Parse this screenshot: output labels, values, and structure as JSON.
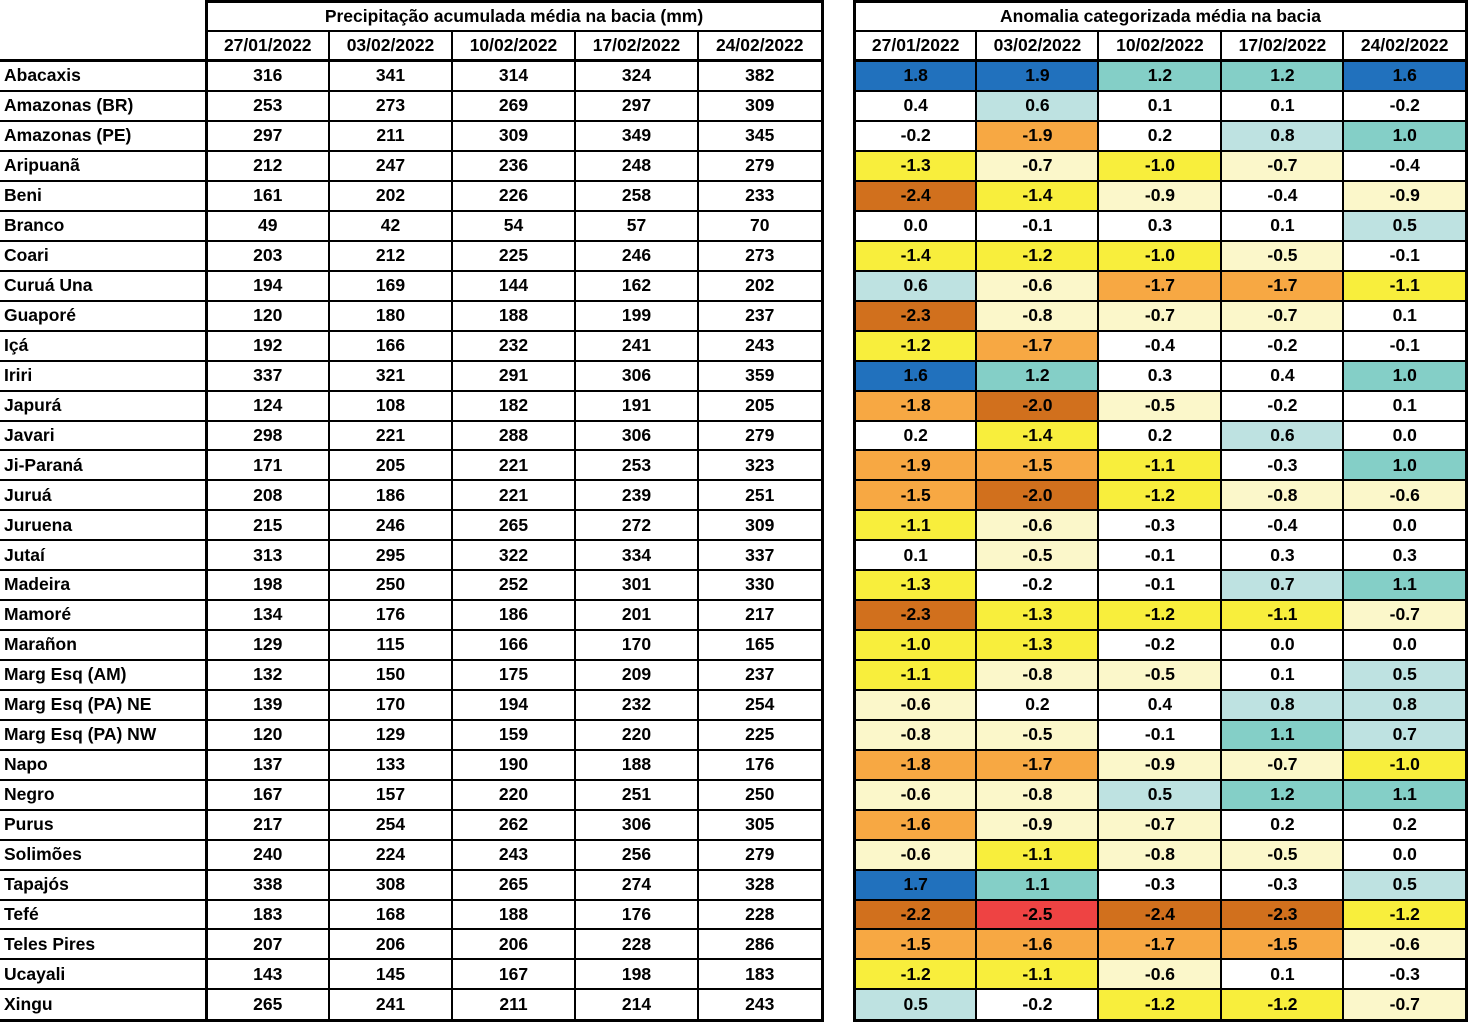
{
  "chart_data": [
    {
      "type": "table",
      "title": "Precipitação acumulada média na bacia (mm)",
      "columns": [
        "27/01/2022",
        "03/02/2022",
        "10/02/2022",
        "17/02/2022",
        "24/02/2022"
      ],
      "row_header": "",
      "rows": [
        {
          "label": "Abacaxis",
          "values": [
            316,
            341,
            314,
            324,
            382
          ]
        },
        {
          "label": "Amazonas (BR)",
          "values": [
            253,
            273,
            269,
            297,
            309
          ]
        },
        {
          "label": "Amazonas (PE)",
          "values": [
            297,
            211,
            309,
            349,
            345
          ]
        },
        {
          "label": "Aripuanã",
          "values": [
            212,
            247,
            236,
            248,
            279
          ]
        },
        {
          "label": "Beni",
          "values": [
            161,
            202,
            226,
            258,
            233
          ]
        },
        {
          "label": "Branco",
          "values": [
            49,
            42,
            54,
            57,
            70
          ]
        },
        {
          "label": "Coari",
          "values": [
            203,
            212,
            225,
            246,
            273
          ]
        },
        {
          "label": "Curuá Una",
          "values": [
            194,
            169,
            144,
            162,
            202
          ]
        },
        {
          "label": "Guaporé",
          "values": [
            120,
            180,
            188,
            199,
            237
          ]
        },
        {
          "label": "Içá",
          "values": [
            192,
            166,
            232,
            241,
            243
          ]
        },
        {
          "label": "Iriri",
          "values": [
            337,
            321,
            291,
            306,
            359
          ]
        },
        {
          "label": "Japurá",
          "values": [
            124,
            108,
            182,
            191,
            205
          ]
        },
        {
          "label": "Javari",
          "values": [
            298,
            221,
            288,
            306,
            279
          ]
        },
        {
          "label": "Ji-Paraná",
          "values": [
            171,
            205,
            221,
            253,
            323
          ]
        },
        {
          "label": "Juruá",
          "values": [
            208,
            186,
            221,
            239,
            251
          ]
        },
        {
          "label": "Juruena",
          "values": [
            215,
            246,
            265,
            272,
            309
          ]
        },
        {
          "label": "Jutaí",
          "values": [
            313,
            295,
            322,
            334,
            337
          ]
        },
        {
          "label": "Madeira",
          "values": [
            198,
            250,
            252,
            301,
            330
          ]
        },
        {
          "label": "Mamoré",
          "values": [
            134,
            176,
            186,
            201,
            217
          ]
        },
        {
          "label": "Marañon",
          "values": [
            129,
            115,
            166,
            170,
            165
          ]
        },
        {
          "label": "Marg Esq (AM)",
          "values": [
            132,
            150,
            175,
            209,
            237
          ]
        },
        {
          "label": "Marg Esq (PA) NE",
          "values": [
            139,
            170,
            194,
            232,
            254
          ]
        },
        {
          "label": "Marg Esq (PA) NW",
          "values": [
            120,
            129,
            159,
            220,
            225
          ]
        },
        {
          "label": "Napo",
          "values": [
            137,
            133,
            190,
            188,
            176
          ]
        },
        {
          "label": "Negro",
          "values": [
            167,
            157,
            220,
            251,
            250
          ]
        },
        {
          "label": "Purus",
          "values": [
            217,
            254,
            262,
            306,
            305
          ]
        },
        {
          "label": "Solimões",
          "values": [
            240,
            224,
            243,
            256,
            279
          ]
        },
        {
          "label": "Tapajós",
          "values": [
            338,
            308,
            265,
            274,
            328
          ]
        },
        {
          "label": "Tefé",
          "values": [
            183,
            168,
            188,
            176,
            228
          ]
        },
        {
          "label": "Teles Pires",
          "values": [
            207,
            206,
            206,
            228,
            286
          ]
        },
        {
          "label": "Ucayali",
          "values": [
            143,
            145,
            167,
            198,
            183
          ]
        },
        {
          "label": "Xingu",
          "values": [
            265,
            241,
            211,
            214,
            243
          ]
        }
      ]
    },
    {
      "type": "heatmap",
      "title": "Anomalia categorizada média na bacia",
      "columns": [
        "27/01/2022",
        "03/02/2022",
        "10/02/2022",
        "17/02/2022",
        "24/02/2022"
      ],
      "rows": [
        {
          "label": "Abacaxis",
          "values": [
            1.8,
            1.9,
            1.2,
            1.2,
            1.6
          ]
        },
        {
          "label": "Amazonas (BR)",
          "values": [
            0.4,
            0.6,
            0.1,
            0.1,
            -0.2
          ]
        },
        {
          "label": "Amazonas (PE)",
          "values": [
            -0.2,
            -1.9,
            0.2,
            0.8,
            1.0
          ]
        },
        {
          "label": "Aripuanã",
          "values": [
            -1.3,
            -0.7,
            -1.0,
            -0.7,
            -0.4
          ]
        },
        {
          "label": "Beni",
          "values": [
            -2.4,
            -1.4,
            -0.9,
            -0.4,
            -0.9
          ]
        },
        {
          "label": "Branco",
          "values": [
            0.0,
            -0.1,
            0.3,
            0.1,
            0.5
          ]
        },
        {
          "label": "Coari",
          "values": [
            -1.4,
            -1.2,
            -1.0,
            -0.5,
            -0.1
          ]
        },
        {
          "label": "Curuá Una",
          "values": [
            0.6,
            -0.6,
            -1.7,
            -1.7,
            -1.1
          ]
        },
        {
          "label": "Guaporé",
          "values": [
            -2.3,
            -0.8,
            -0.7,
            -0.7,
            0.1
          ]
        },
        {
          "label": "Içá",
          "values": [
            -1.2,
            -1.7,
            -0.4,
            -0.2,
            -0.1
          ]
        },
        {
          "label": "Iriri",
          "values": [
            1.6,
            1.2,
            0.3,
            0.4,
            1.0
          ]
        },
        {
          "label": "Japurá",
          "values": [
            -1.8,
            -2.0,
            -0.5,
            -0.2,
            0.1
          ]
        },
        {
          "label": "Javari",
          "values": [
            0.2,
            -1.4,
            0.2,
            0.6,
            0.0
          ]
        },
        {
          "label": "Ji-Paraná",
          "values": [
            -1.9,
            -1.5,
            -1.1,
            -0.3,
            1.0
          ]
        },
        {
          "label": "Juruá",
          "values": [
            -1.5,
            -2.0,
            -1.2,
            -0.8,
            -0.6
          ]
        },
        {
          "label": "Juruena",
          "values": [
            -1.1,
            -0.6,
            -0.3,
            -0.4,
            0.0
          ]
        },
        {
          "label": "Jutaí",
          "values": [
            0.1,
            -0.5,
            -0.1,
            0.3,
            0.3
          ]
        },
        {
          "label": "Madeira",
          "values": [
            -1.3,
            -0.2,
            -0.1,
            0.7,
            1.1
          ]
        },
        {
          "label": "Mamoré",
          "values": [
            -2.3,
            -1.3,
            -1.2,
            -1.1,
            -0.7
          ]
        },
        {
          "label": "Marañon",
          "values": [
            -1.0,
            -1.3,
            -0.2,
            0.0,
            0.0
          ]
        },
        {
          "label": "Marg Esq (AM)",
          "values": [
            -1.1,
            -0.8,
            -0.5,
            0.1,
            0.5
          ]
        },
        {
          "label": "Marg Esq (PA) NE",
          "values": [
            -0.6,
            0.2,
            0.4,
            0.8,
            0.8
          ]
        },
        {
          "label": "Marg Esq (PA) NW",
          "values": [
            -0.8,
            -0.5,
            -0.1,
            1.1,
            0.7
          ]
        },
        {
          "label": "Napo",
          "values": [
            -1.8,
            -1.7,
            -0.9,
            -0.7,
            -1.0
          ]
        },
        {
          "label": "Negro",
          "values": [
            -0.6,
            -0.8,
            0.5,
            1.2,
            1.1
          ]
        },
        {
          "label": "Purus",
          "values": [
            -1.6,
            -0.9,
            -0.7,
            0.2,
            0.2
          ]
        },
        {
          "label": "Solimões",
          "values": [
            -0.6,
            -1.1,
            -0.8,
            -0.5,
            0.0
          ]
        },
        {
          "label": "Tapajós",
          "values": [
            1.7,
            1.1,
            -0.3,
            -0.3,
            0.5
          ]
        },
        {
          "label": "Tefé",
          "values": [
            -2.2,
            -2.5,
            -2.4,
            -2.3,
            -1.2
          ]
        },
        {
          "label": "Teles Pires",
          "values": [
            -1.5,
            -1.6,
            -1.7,
            -1.5,
            -0.6
          ]
        },
        {
          "label": "Ucayali",
          "values": [
            -1.2,
            -1.1,
            -0.6,
            0.1,
            -0.3
          ]
        },
        {
          "label": "Xingu",
          "values": [
            0.5,
            -0.2,
            -1.2,
            -1.2,
            -0.7
          ]
        }
      ],
      "color_scale": [
        {
          "min": 1.5,
          "color": "#2171bd",
          "category": "blue"
        },
        {
          "min": 1.0,
          "color": "#84cfc7",
          "category": "teal"
        },
        {
          "min": 0.5,
          "color": "#bee2e1",
          "category": "light-blue"
        },
        {
          "min": -0.45,
          "color": "#ffffff",
          "category": "white"
        },
        {
          "min": -0.95,
          "color": "#fbf7ca",
          "category": "pale-yellow"
        },
        {
          "min": -1.45,
          "color": "#f8ee3c",
          "category": "yellow"
        },
        {
          "min": -1.95,
          "color": "#f7a843",
          "category": "orange"
        },
        {
          "min": -2.45,
          "color": "#d1701d",
          "category": "dark-orange"
        },
        {
          "min": -99,
          "color": "#ee4343",
          "category": "red"
        }
      ]
    }
  ]
}
